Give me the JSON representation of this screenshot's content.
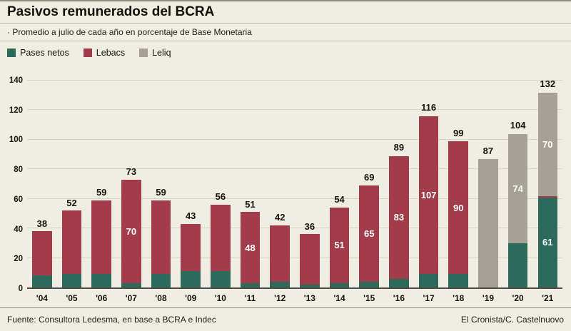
{
  "header": {
    "title": "Pasivos remunerados del BCRA"
  },
  "subtitle": "· Promedio a julio de cada año en porcentaje de Base Monetaria",
  "footer": {
    "source": "Fuente: Consultora Ledesma, en base a BCRA e Indec",
    "credit": "El Cronista/C. Castelnuovo"
  },
  "chart_data": {
    "type": "bar",
    "variant": "stacked",
    "title": "Pasivos remunerados del BCRA",
    "subtitle": "Promedio a julio de cada año en porcentaje de Base Monetaria",
    "ylim": [
      0,
      140
    ],
    "yticks": [
      0,
      20,
      40,
      60,
      80,
      100,
      120,
      140
    ],
    "grid": true,
    "legend_position": "top-left",
    "background": "#f0ede3",
    "legend": [
      {
        "key": "pases",
        "label": "Pases netos",
        "color": "#2e6a5c"
      },
      {
        "key": "lebacs",
        "label": "Lebacs",
        "color": "#a23c4b"
      },
      {
        "key": "leliq",
        "label": "Leliq",
        "color": "#a5a196"
      }
    ],
    "categories": [
      "'04",
      "'05",
      "'06",
      "'07",
      "'08",
      "'09",
      "'10",
      "'11",
      "'12",
      "'13",
      "'14",
      "'15",
      "'16",
      "'17",
      "'18",
      "'19",
      "'20",
      "'21"
    ],
    "totals": [
      38,
      52,
      59,
      73,
      59,
      43,
      56,
      51,
      42,
      36,
      54,
      69,
      89,
      116,
      99,
      87,
      104,
      132
    ],
    "series": [
      {
        "name": "Pases netos",
        "values": [
          8,
          9,
          9,
          3,
          9,
          11,
          11,
          3,
          4,
          2,
          3,
          4,
          6,
          9,
          9,
          0,
          30,
          61
        ]
      },
      {
        "name": "Lebacs",
        "values": [
          30,
          43,
          50,
          70,
          50,
          32,
          45,
          48,
          38,
          34,
          51,
          65,
          83,
          107,
          90,
          0,
          0,
          1
        ]
      },
      {
        "name": "Leliq",
        "values": [
          0,
          0,
          0,
          0,
          0,
          0,
          0,
          0,
          0,
          0,
          0,
          0,
          0,
          0,
          0,
          87,
          74,
          70
        ]
      }
    ],
    "segment_labels": [
      {
        "category": "'07",
        "series": "Lebacs",
        "label": "70"
      },
      {
        "category": "'11",
        "series": "Lebacs",
        "label": "48"
      },
      {
        "category": "'14",
        "series": "Lebacs",
        "label": "51"
      },
      {
        "category": "'15",
        "series": "Lebacs",
        "label": "65"
      },
      {
        "category": "'16",
        "series": "Lebacs",
        "label": "83"
      },
      {
        "category": "'17",
        "series": "Lebacs",
        "label": "107"
      },
      {
        "category": "'18",
        "series": "Lebacs",
        "label": "90"
      },
      {
        "category": "'20",
        "series": "Leliq",
        "label": "74"
      },
      {
        "category": "'21",
        "series": "Pases netos",
        "label": "61"
      },
      {
        "category": "'21",
        "series": "Leliq",
        "label": "70"
      }
    ]
  }
}
